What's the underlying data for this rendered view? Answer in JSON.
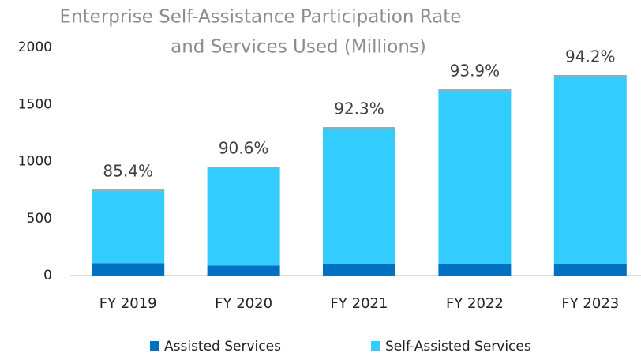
{
  "chart_data": {
    "type": "stacked_bar",
    "title": [
      "Enterprise Self-Assistance Participation Rate",
      "and Services Used (Millions)"
    ],
    "categories": [
      "FY 2019",
      "FY 2020",
      "FY 2021",
      "FY 2022",
      "FY 2023"
    ],
    "series": [
      {
        "name": "Assisted Services",
        "color": "#0070c0",
        "values": [
          108,
          88,
          99,
          99,
          101
        ]
      },
      {
        "name": "Self-Assisted Services",
        "color": "#33ccff",
        "values": [
          632,
          853,
          1188,
          1520,
          1643
        ]
      }
    ],
    "annotations": [
      "85.4%",
      "90.6%",
      "92.3%",
      "93.9%",
      "94.2%"
    ],
    "ylim": [
      0,
      2000
    ],
    "yticks": [
      0,
      500,
      1000,
      1500,
      2000
    ],
    "grid": false,
    "legend": "bottom"
  }
}
